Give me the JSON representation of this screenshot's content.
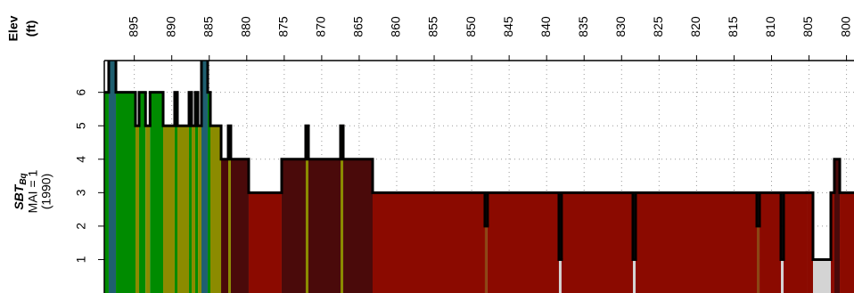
{
  "chart_data": {
    "type": "step",
    "xlabel": "Elev",
    "xlabel_unit": "(ft)",
    "ylabel": "SBT",
    "ylabel_subscript": "Bq",
    "ylabel_lines": [
      "MAI = 1",
      "(1990)"
    ],
    "x": [
      899.0,
      898.41,
      897.45,
      894.84,
      894.36,
      893.5,
      892.9,
      891.15,
      889.61,
      889.25,
      887.7,
      887.35,
      886.87,
      886.51,
      886.04,
      885.21,
      884.85,
      883.42,
      882.47,
      882.12,
      879.74,
      875.34,
      872.13,
      871.77,
      867.49,
      867.13,
      863.21,
      848.23,
      847.88,
      838.36,
      838.01,
      828.49,
      828.13,
      811.96,
      811.6,
      808.75,
      808.39,
      805.3,
      804.47,
      802.09,
      801.62,
      800.9
    ],
    "values": [
      6,
      7,
      6,
      5,
      6,
      5,
      6,
      5,
      6,
      5,
      6,
      5,
      6,
      5,
      7,
      6,
      5,
      4,
      5,
      4,
      3,
      4,
      5,
      4,
      5,
      4,
      3,
      2,
      3,
      1,
      3,
      1,
      3,
      2,
      3,
      1,
      3,
      3,
      1,
      3,
      4,
      3
    ],
    "zone_colors": {
      "1": "#d4d4d4",
      "2": "#8b4513",
      "3": "#8b0a00",
      "4": "#4a0a0a",
      "5": "#8b8b00",
      "6": "#008b00",
      "7": "#1f5f70"
    },
    "line_color": "#000000",
    "xlim": [
      899,
      799
    ],
    "xticks": [
      895,
      890,
      885,
      880,
      875,
      870,
      865,
      860,
      855,
      850,
      845,
      840,
      835,
      830,
      825,
      820,
      815,
      810,
      805,
      800
    ],
    "ylim": [
      0,
      6.95
    ],
    "yticks": [
      1,
      2,
      3,
      4,
      5,
      6
    ],
    "grid": true
  }
}
